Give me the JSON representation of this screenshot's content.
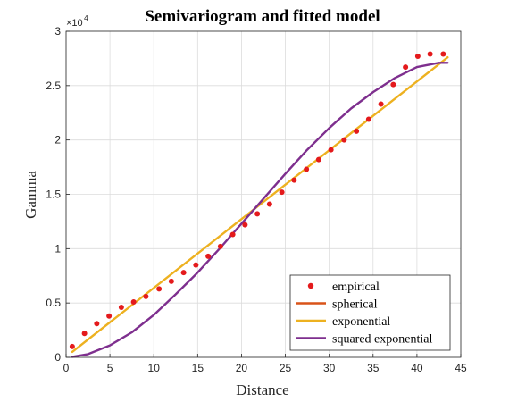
{
  "chart_data": {
    "type": "scatter",
    "title": "Semivariogram and fitted model",
    "xlabel": "Distance",
    "ylabel": "Gamma",
    "xlim": [
      0,
      45
    ],
    "ylim": [
      0,
      30000
    ],
    "y_multiplier_label": "×10",
    "y_multiplier_exponent": "4",
    "x_ticks": [
      {
        "value": 0,
        "label": "0"
      },
      {
        "value": 5,
        "label": "5"
      },
      {
        "value": 10,
        "label": "10"
      },
      {
        "value": 15,
        "label": "15"
      },
      {
        "value": 20,
        "label": "20"
      },
      {
        "value": 25,
        "label": "25"
      },
      {
        "value": 30,
        "label": "30"
      },
      {
        "value": 35,
        "label": "35"
      },
      {
        "value": 40,
        "label": "40"
      },
      {
        "value": 45,
        "label": "45"
      }
    ],
    "y_ticks": [
      {
        "value": 0,
        "label": "0"
      },
      {
        "value": 5000,
        "label": "0.5"
      },
      {
        "value": 10000,
        "label": "1"
      },
      {
        "value": 15000,
        "label": "1.5"
      },
      {
        "value": 20000,
        "label": "2"
      },
      {
        "value": 25000,
        "label": "2.5"
      },
      {
        "value": 30000,
        "label": "3"
      }
    ],
    "grid": true,
    "legend_position": "bottom-right",
    "series": [
      {
        "name": "empirical",
        "kind": "scatter",
        "color": "#e41a1c",
        "x": [
          0.7,
          2.1,
          3.5,
          4.9,
          6.3,
          7.7,
          9.1,
          10.6,
          12.0,
          13.4,
          14.8,
          16.2,
          17.6,
          19.0,
          20.4,
          21.8,
          23.2,
          24.6,
          26.0,
          27.4,
          28.8,
          30.2,
          31.7,
          33.1,
          34.5,
          35.9,
          37.3,
          38.7,
          40.1,
          41.5,
          43.0
        ],
        "y": [
          1000,
          2200,
          3100,
          3800,
          4600,
          5100,
          5600,
          6300,
          7000,
          7800,
          8500,
          9300,
          10200,
          11300,
          12200,
          13200,
          14100,
          15200,
          16300,
          17300,
          18200,
          19100,
          20000,
          20800,
          21900,
          23300,
          25100,
          26700,
          27700,
          27900,
          27900
        ]
      },
      {
        "name": "spherical",
        "kind": "line",
        "color": "#d95319",
        "x": [],
        "y": []
      },
      {
        "name": "exponential",
        "kind": "line",
        "color": "#edb120",
        "x": [
          0.7,
          43.5
        ],
        "y": [
          500,
          27600
        ]
      },
      {
        "name": "squared exponential",
        "kind": "line",
        "color": "#7e2f8e",
        "x": [
          0.7,
          2.5,
          5,
          7.5,
          10,
          12.5,
          15,
          17.5,
          20,
          22.5,
          25,
          27.5,
          30,
          32.5,
          35,
          37.5,
          40,
          42.5,
          43.5
        ],
        "y": [
          50,
          300,
          1100,
          2300,
          3900,
          5800,
          7800,
          10000,
          12300,
          14600,
          16900,
          19100,
          21100,
          22900,
          24400,
          25700,
          26700,
          27100,
          27100
        ]
      }
    ]
  }
}
